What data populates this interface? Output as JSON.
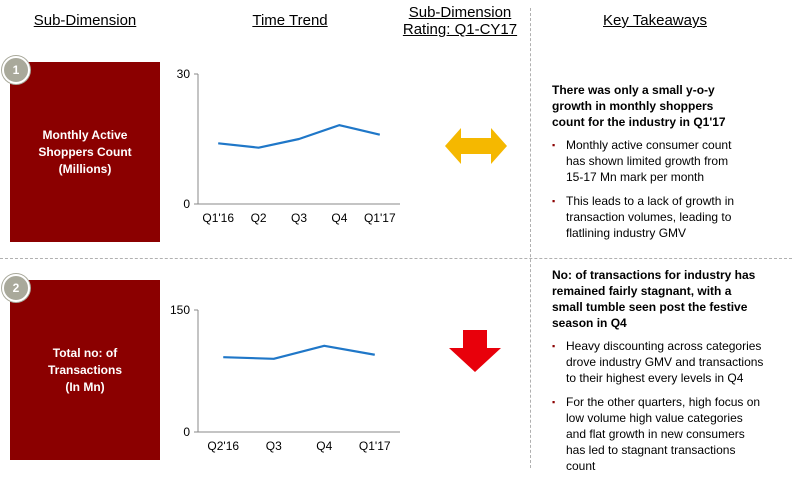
{
  "headers": {
    "sub_dimension": "Sub-Dimension",
    "time_trend": "Time Trend",
    "rating_line1": "Sub-Dimension",
    "rating_line2": "Rating: Q1-CY17",
    "key_takeaways": "Key Takeaways"
  },
  "rows": [
    {
      "number": "1",
      "label_lines": [
        "Monthly Active",
        "Shoppers Count",
        "(Millions)"
      ],
      "rating_icon": "double-arrow-icon",
      "rating_color": "#f5b800",
      "takeaway_heading_lines": [
        "There was only a small y-o-y",
        "growth in monthly shoppers",
        "count for the industry in Q1'17"
      ],
      "bullets": [
        [
          "Monthly active consumer count",
          "has shown limited growth from",
          "15-17 Mn mark per month"
        ],
        [
          "This leads to a lack of growth in",
          "transaction volumes, leading to",
          "flatlining industry GMV"
        ]
      ]
    },
    {
      "number": "2",
      "label_lines": [
        "Total no: of",
        "Transactions",
        "(In Mn)"
      ],
      "rating_icon": "down-arrow-icon",
      "rating_color": "#e8000b",
      "takeaway_heading_lines": [
        "No: of transactions for industry has",
        "remained fairly stagnant, with a",
        "small tumble seen post the festive",
        "season in Q4"
      ],
      "bullets": [
        [
          "Heavy discounting across categories",
          "drove industry GMV and transactions",
          "to their highest every levels in Q4"
        ],
        [
          "For the other quarters, high focus on",
          "low volume high value categories",
          "and flat growth in new consumers",
          "has led to stagnant transactions",
          "count"
        ]
      ]
    }
  ],
  "chart_data": [
    {
      "type": "line",
      "categories": [
        "Q1'16",
        "Q2",
        "Q3",
        "Q4",
        "Q1'17"
      ],
      "values": [
        14.0,
        13.0,
        15.0,
        18.2,
        16.0
      ],
      "ylim": [
        0,
        30
      ],
      "yticks": [
        "0",
        "30"
      ],
      "line_color": "#1f77c8",
      "grid": false
    },
    {
      "type": "line",
      "categories": [
        "Q2'16",
        "Q3",
        "Q4",
        "Q1'17"
      ],
      "values": [
        92,
        90,
        106,
        95
      ],
      "ylim": [
        0,
        150
      ],
      "yticks": [
        "0",
        "150"
      ],
      "line_color": "#1f77c8",
      "grid": false
    }
  ]
}
